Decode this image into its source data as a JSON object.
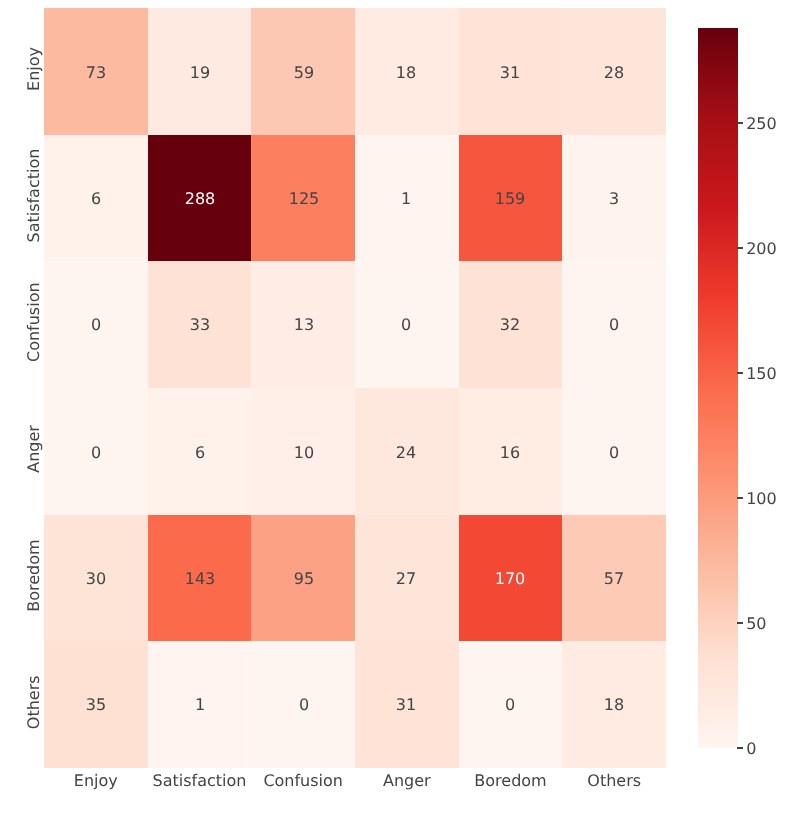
{
  "chart_data": {
    "type": "heatmap",
    "categories": [
      "Enjoy",
      "Satisfaction",
      "Confusion",
      "Anger",
      "Boredom",
      "Others"
    ],
    "y_categories": [
      "Enjoy",
      "Satisfaction",
      "Confusion",
      "Anger",
      "Boredom",
      "Others"
    ],
    "cells": [
      [
        73,
        19,
        59,
        18,
        31,
        28
      ],
      [
        6,
        288,
        125,
        1,
        159,
        3
      ],
      [
        0,
        33,
        13,
        0,
        32,
        0
      ],
      [
        0,
        6,
        10,
        24,
        16,
        0
      ],
      [
        30,
        143,
        95,
        27,
        170,
        57
      ],
      [
        35,
        1,
        0,
        31,
        0,
        18
      ]
    ],
    "clim": [
      0,
      288
    ],
    "cticks": [
      0,
      50,
      100,
      150,
      200,
      250
    ],
    "data_labels": true
  }
}
